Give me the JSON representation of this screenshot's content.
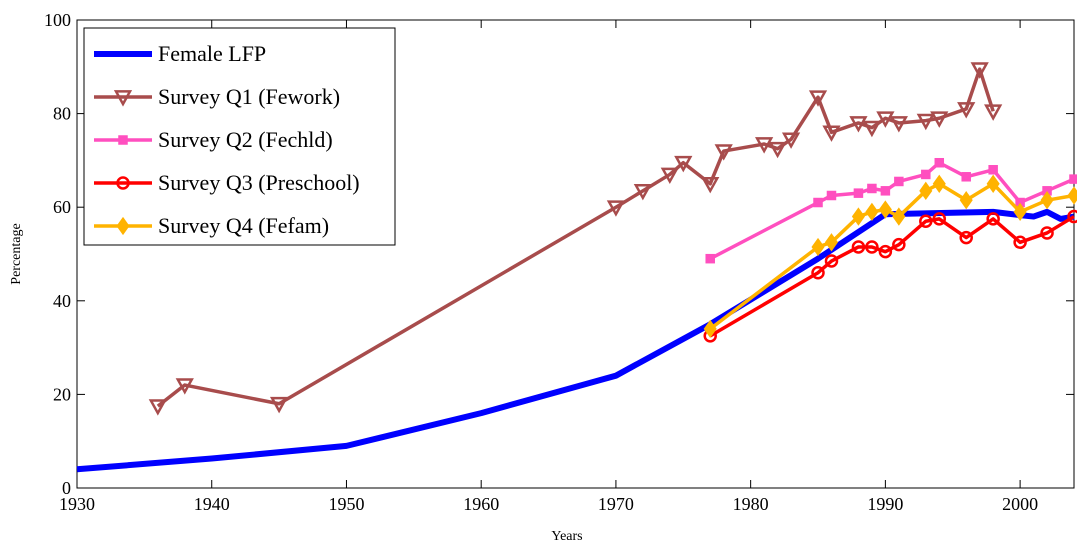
{
  "chart_data": {
    "type": "line",
    "xlabel": "Years",
    "ylabel": "Percentage",
    "xlim": [
      1930,
      2004
    ],
    "ylim": [
      0,
      100
    ],
    "xticks": [
      1930,
      1940,
      1950,
      1960,
      1970,
      1980,
      1990,
      2000
    ],
    "yticks": [
      0,
      20,
      40,
      60,
      80,
      100
    ],
    "grid": false,
    "legend": "upper left",
    "series": [
      {
        "name": "Female LFP",
        "color": "#0000ff",
        "marker": "none",
        "x": [
          1930,
          1940,
          1950,
          1960,
          1970,
          1977,
          1985,
          1990,
          1998,
          2000,
          2001,
          2002,
          2003,
          2004
        ],
        "values": [
          4,
          6.3,
          9,
          16,
          24,
          35,
          49,
          58.5,
          59,
          58.3,
          58,
          59,
          57.5,
          58
        ]
      },
      {
        "name": "Survey Q1 (Fework)",
        "color": "#a84c4c",
        "marker": "triangle-down",
        "x": [
          1936,
          1938,
          1945,
          1970,
          1972,
          1974,
          1975,
          1977,
          1978,
          1981,
          1982,
          1983,
          1985,
          1986,
          1988,
          1989,
          1990,
          1991,
          1993,
          1994,
          1996,
          1997,
          1998
        ],
        "values": [
          17.5,
          22,
          18,
          60,
          63.5,
          67,
          69.5,
          65,
          72,
          73.5,
          72.5,
          74.5,
          83.5,
          76,
          78,
          77,
          79,
          78,
          78.5,
          79,
          81,
          89.5,
          80.5
        ]
      },
      {
        "name": "Survey Q2 (Fechld)",
        "color": "#ff4fbf",
        "marker": "square",
        "x": [
          1977,
          1985,
          1986,
          1988,
          1989,
          1990,
          1991,
          1993,
          1994,
          1996,
          1998,
          2000,
          2002,
          2004
        ],
        "values": [
          49,
          61,
          62.5,
          63,
          64,
          63.5,
          65.5,
          67,
          69.5,
          66.5,
          68,
          61,
          63.5,
          66
        ]
      },
      {
        "name": "Survey Q3 (Preschool)",
        "color": "#ff0000",
        "marker": "circle",
        "x": [
          1977,
          1985,
          1986,
          1988,
          1989,
          1990,
          1991,
          1993,
          1994,
          1996,
          1998,
          2000,
          2002,
          2004
        ],
        "values": [
          32.5,
          46,
          48.5,
          51.5,
          51.5,
          50.5,
          52,
          57,
          57.5,
          53.5,
          57.5,
          52.5,
          54.5,
          58
        ]
      },
      {
        "name": "Survey Q4 (Fefam)",
        "color": "#ffb300",
        "marker": "diamond",
        "x": [
          1977,
          1985,
          1986,
          1988,
          1989,
          1990,
          1991,
          1993,
          1994,
          1996,
          1998,
          2000,
          2002,
          2004
        ],
        "values": [
          34,
          51.5,
          52.5,
          58,
          59,
          59.5,
          58,
          63.5,
          65,
          61.5,
          65,
          59,
          61.5,
          62.5
        ]
      }
    ]
  }
}
